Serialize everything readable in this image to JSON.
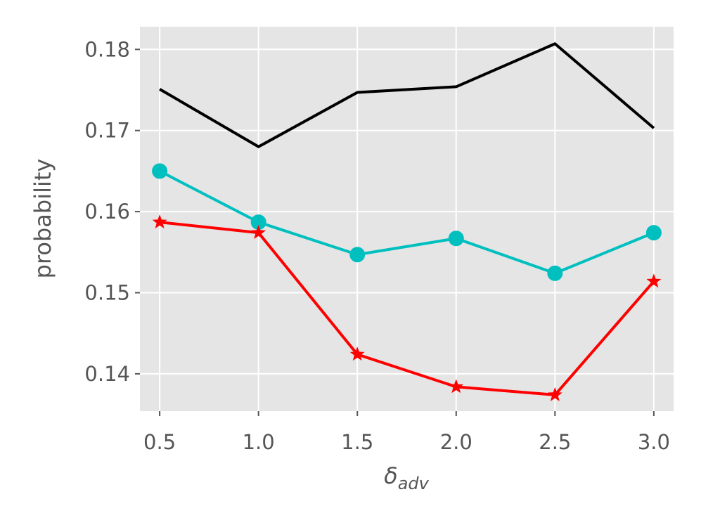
{
  "chart_data": {
    "type": "line",
    "x": [
      0.5,
      1.0,
      1.5,
      2.0,
      2.5,
      3.0
    ],
    "x_ticks": [
      "0.5",
      "1.0",
      "1.5",
      "2.0",
      "2.5",
      "3.0"
    ],
    "y_ticks": [
      "0.14",
      "0.15",
      "0.16",
      "0.17",
      "0.18"
    ],
    "xlim": [
      0.4,
      3.1
    ],
    "ylim": [
      0.1354,
      0.1828
    ],
    "xlabel": {
      "base": "δ",
      "sub": "adv"
    },
    "ylabel": "probability",
    "grid": true,
    "legend": "none",
    "background": "#e5e5e5",
    "series": [
      {
        "values": [
          0.1751,
          0.168,
          0.1747,
          0.1754,
          0.1807,
          0.1703
        ],
        "color": "#000000",
        "marker": "none"
      },
      {
        "values": [
          0.165,
          0.1587,
          0.1547,
          0.1567,
          0.1524,
          0.1574
        ],
        "color": "#00bfbf",
        "marker": "circle"
      },
      {
        "values": [
          0.1587,
          0.1574,
          0.1424,
          0.1384,
          0.1374,
          0.1514
        ],
        "color": "#ff0000",
        "marker": "star"
      }
    ]
  }
}
